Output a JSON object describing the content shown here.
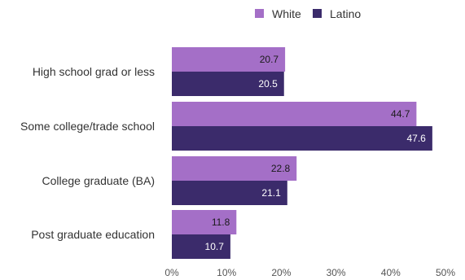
{
  "chart_data": {
    "type": "bar",
    "orientation": "horizontal",
    "categories": [
      "High school grad or less",
      "Some college/trade school",
      "College graduate (BA)",
      "Post graduate education"
    ],
    "series": [
      {
        "name": "White",
        "values": [
          20.7,
          44.7,
          22.8,
          11.8
        ],
        "color": "#a46fc7",
        "label_color": "#1a1a1a"
      },
      {
        "name": "Latino",
        "values": [
          20.5,
          47.6,
          21.1,
          10.7
        ],
        "color": "#3b2b6b",
        "label_color": "#ffffff"
      }
    ],
    "xlim": [
      0,
      50
    ],
    "xticks": [
      0,
      10,
      20,
      30,
      40,
      50
    ],
    "xtick_labels": [
      "0%",
      "10%",
      "20%",
      "30%",
      "40%",
      "50%"
    ],
    "legend_position": "top-right",
    "grid": false,
    "data_labels": true
  }
}
